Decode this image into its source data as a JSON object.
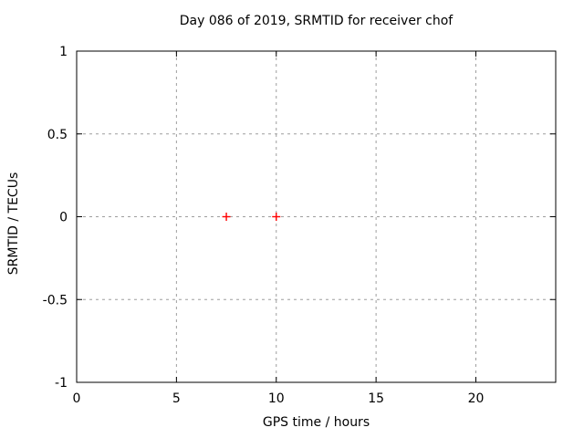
{
  "chart_data": {
    "type": "scatter",
    "title": "Day 086 of 2019, SRMTID for receiver chof",
    "xlabel": "GPS time / hours",
    "ylabel": "SRMTID / TECUs",
    "xlim": [
      0,
      24
    ],
    "ylim": [
      -1,
      1
    ],
    "xticks": {
      "values": [
        0,
        5,
        10,
        15,
        20
      ],
      "labels": [
        "0",
        "5",
        "10",
        "15",
        "20"
      ]
    },
    "yticks": {
      "values": [
        -1,
        -0.5,
        0,
        0.5,
        1
      ],
      "labels": [
        "-1",
        "-0.5",
        "0",
        "0.5",
        "1"
      ]
    },
    "grid": true,
    "legend": "none",
    "series": [
      {
        "name": "SRMTID",
        "marker": "plus",
        "color": "#ff0000",
        "points": [
          {
            "x": 7.5,
            "y": 0
          },
          {
            "x": 10,
            "y": 0
          }
        ]
      }
    ],
    "colors": {
      "background": "#ffffff",
      "frame": "#000000",
      "grid": "#9e9e9e",
      "text": "#000000"
    }
  }
}
